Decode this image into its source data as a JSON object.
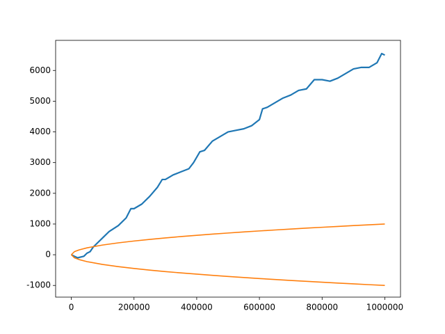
{
  "chart_data": {
    "type": "line",
    "xlim": [
      -50000,
      1050000
    ],
    "xticks": [
      0,
      200000,
      400000,
      600000,
      800000,
      1000000
    ],
    "ylim": [
      -1380,
      6980
    ],
    "yticks": [
      -1000,
      0,
      1000,
      2000,
      3000,
      4000,
      5000,
      6000
    ],
    "series": [
      {
        "color": "#1f77b4",
        "x": [
          0,
          10000,
          20000,
          40000,
          50000,
          60000,
          70000,
          80000,
          100000,
          120000,
          150000,
          175000,
          190000,
          200000,
          225000,
          250000,
          275000,
          290000,
          300000,
          325000,
          350000,
          375000,
          390000,
          410000,
          425000,
          450000,
          475000,
          500000,
          525000,
          550000,
          575000,
          600000,
          610000,
          625000,
          650000,
          675000,
          700000,
          725000,
          750000,
          775000,
          800000,
          825000,
          850000,
          875000,
          900000,
          925000,
          950000,
          975000,
          990000,
          1000000
        ],
        "values": [
          0,
          -50,
          -100,
          -50,
          50,
          100,
          250,
          350,
          550,
          750,
          950,
          1200,
          1500,
          1500,
          1650,
          1900,
          2200,
          2450,
          2450,
          2600,
          2700,
          2800,
          3000,
          3350,
          3400,
          3700,
          3850,
          4000,
          4050,
          4100,
          4200,
          4400,
          4750,
          4800,
          4950,
          5100,
          5200,
          5350,
          5400,
          5700,
          5700,
          5650,
          5750,
          5900,
          6050,
          6100,
          6100,
          6250,
          6550,
          6500
        ]
      },
      {
        "color": "#ff7f0e",
        "x": [
          0,
          10000,
          25000,
          50000,
          100000,
          150000,
          200000,
          250000,
          300000,
          350000,
          400000,
          450000,
          500000,
          550000,
          600000,
          650000,
          700000,
          750000,
          800000,
          850000,
          900000,
          950000,
          1000000
        ],
        "values": [
          0,
          100,
          158,
          224,
          316,
          387,
          447,
          500,
          548,
          592,
          632,
          671,
          707,
          742,
          775,
          806,
          837,
          866,
          894,
          922,
          949,
          975,
          1000
        ]
      },
      {
        "color": "#ff7f0e",
        "x": [
          0,
          10000,
          25000,
          50000,
          100000,
          150000,
          200000,
          250000,
          300000,
          350000,
          400000,
          450000,
          500000,
          550000,
          600000,
          650000,
          700000,
          750000,
          800000,
          850000,
          900000,
          950000,
          1000000
        ],
        "values": [
          0,
          -100,
          -158,
          -224,
          -316,
          -387,
          -447,
          -500,
          -548,
          -592,
          -632,
          -671,
          -707,
          -742,
          -775,
          -806,
          -837,
          -866,
          -894,
          -922,
          -949,
          -975,
          -1000
        ]
      }
    ]
  }
}
